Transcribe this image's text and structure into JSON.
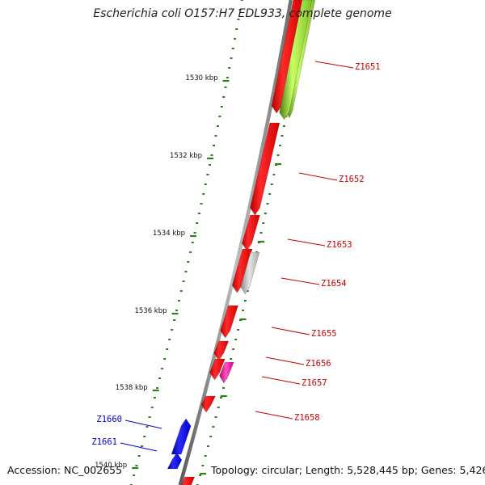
{
  "title": "Escherichia coli O157:H7 EDL933, complete genome",
  "accession": "Accession: NC_002655",
  "topology": "Topology: circular; Length: 5,528,445 bp; Genes: 5,426",
  "colors": {
    "backbone": "#8c8c8c",
    "tick": "#2e7d1e",
    "forward_gene": "#ff0000",
    "reverse_gene": "#0000ff",
    "label_forward": "#cc0000",
    "label_reverse": "#0000cc",
    "gene_grey": "#bdbdbd",
    "gene_pink": "#ff33aa",
    "gene_lime": "#9ad84a"
  },
  "ticks": [
    "1530 kbp",
    "1532 kbp",
    "1534 kbp",
    "1536 kbp",
    "1538 kbp",
    "1540 kbp"
  ],
  "genes": [
    {
      "label": "Z1651",
      "strand": "+",
      "color": "lime"
    },
    {
      "label": "Z1652",
      "strand": "+",
      "color": "red"
    },
    {
      "label": "Z1653",
      "strand": "+",
      "color": "red"
    },
    {
      "label": "Z1654",
      "strand": "+",
      "color": "grey"
    },
    {
      "label": "Z1655",
      "strand": "+",
      "color": "red"
    },
    {
      "label": "Z1656",
      "strand": "+",
      "color": "red"
    },
    {
      "label": "Z1657",
      "strand": "+",
      "color": "pink"
    },
    {
      "label": "Z1658",
      "strand": "+",
      "color": "red"
    },
    {
      "label": "Z1660",
      "strand": "-",
      "color": "blue"
    },
    {
      "label": "Z1661",
      "strand": "-",
      "color": "blue"
    }
  ]
}
